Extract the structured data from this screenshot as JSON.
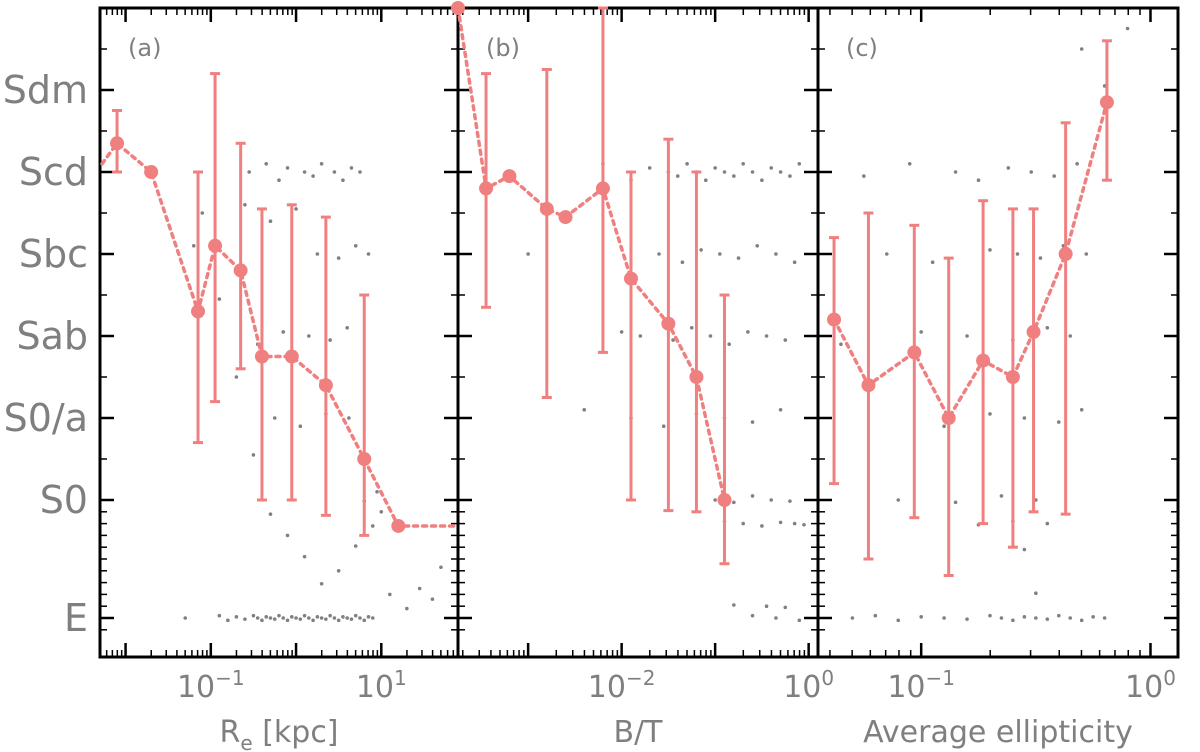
{
  "chart_data": {
    "type": "scatter",
    "y_axis": {
      "ticks": [
        "E",
        "S0",
        "S0/a",
        "Sab",
        "Sbc",
        "Scd",
        "Sdm"
      ],
      "tick_values": [
        -5,
        0,
        1,
        2,
        3,
        4,
        5
      ],
      "ylim": [
        -5.5,
        6.0
      ]
    },
    "marker_color": "#f08080",
    "scatter_color": "#808080",
    "panels": [
      {
        "label": "(a)",
        "xlabel_main": "R",
        "xlabel_sub": "e",
        "xlabel_rest": " [kpc]",
        "xscale": "log",
        "xlim_log10": [
          -2.3,
          1.9
        ],
        "xticks": [
          {
            "base": "10",
            "exp": "−1",
            "log": -1
          },
          {
            "base": "10",
            "exp": "1",
            "log": 1
          }
        ],
        "series": {
          "x_log10": [
            -2.1,
            -1.7,
            -1.15,
            -0.95,
            -0.65,
            -0.4,
            -0.05,
            0.35,
            0.8,
            1.2
          ],
          "y": [
            4.35,
            4.0,
            2.3,
            3.1,
            2.8,
            1.75,
            1.75,
            1.4,
            0.5,
            -1.1
          ],
          "yerr_low": [
            4.0,
            4.0,
            0.7,
            1.2,
            1.6,
            0.0,
            0.0,
            -0.65,
            -1.5,
            -1.1
          ],
          "yerr_high": [
            4.75,
            4.0,
            4.0,
            5.2,
            4.35,
            3.55,
            3.6,
            3.45,
            2.5,
            -1.1
          ]
        },
        "scatter": {
          "x_log10": [
            -1.3,
            -0.9,
            -0.8,
            -0.7,
            -0.6,
            -0.5,
            -0.45,
            -0.4,
            -0.35,
            -0.3,
            -0.25,
            -0.2,
            -0.15,
            -0.1,
            -0.05,
            0.0,
            0.05,
            0.1,
            0.15,
            0.2,
            0.25,
            0.3,
            0.35,
            0.4,
            0.45,
            0.5,
            0.55,
            0.6,
            0.65,
            0.7,
            0.75,
            0.8,
            0.85,
            0.9,
            -0.55,
            -0.35,
            -0.2,
            -0.1,
            0.1,
            0.2,
            0.3,
            0.45,
            0.55,
            0.65,
            0.75,
            -1.1,
            -0.6,
            -0.3,
            0.0,
            0.25,
            0.5,
            0.7,
            0.85,
            -0.45,
            -0.15,
            0.15,
            0.4,
            0.6,
            -0.25,
            0.05,
            0.35,
            0.62,
            0.8,
            0.95,
            1.0,
            0.9,
            0.7,
            0.5,
            0.3,
            0.1,
            -0.1,
            -0.3,
            -0.5,
            -0.7,
            -0.9,
            -1.2,
            1.1,
            1.3,
            1.45,
            1.6,
            1.7
          ],
          "y": [
            -5.0,
            -5.0,
            -5.0,
            -5.0,
            -5.0,
            -5.0,
            -5.0,
            -5.0,
            -5.0,
            -5.0,
            -5.0,
            -5.0,
            -5.0,
            -5.0,
            -5.0,
            -5.0,
            -5.0,
            -5.0,
            -5.0,
            -5.0,
            -5.0,
            -5.0,
            -5.0,
            -5.0,
            -5.0,
            -5.0,
            -5.0,
            -5.0,
            -5.0,
            -5.0,
            -5.0,
            -5.0,
            -5.0,
            -5.0,
            4.0,
            4.0,
            4.0,
            4.0,
            4.0,
            4.0,
            4.0,
            4.0,
            4.0,
            4.0,
            4.0,
            3.5,
            3.5,
            3.5,
            3.5,
            3.0,
            3.0,
            3.0,
            3.0,
            2.0,
            2.0,
            2.0,
            2.0,
            2.0,
            1.0,
            1.0,
            1.0,
            1.0,
            0.0,
            0.0,
            -0.5,
            -1.0,
            -2.0,
            -3.0,
            -3.5,
            -2.5,
            -1.5,
            -0.5,
            0.5,
            1.5,
            2.5,
            3.0,
            -4.0,
            -4.5,
            -3.8,
            -4.2,
            -2.8
          ],
          "y_jitter": [
            0.0,
            0.1,
            -0.1,
            0.05,
            -0.05,
            0.1,
            0.0,
            -0.1,
            0.05,
            0.0,
            -0.05,
            0.1,
            0.0,
            -0.1,
            0.05,
            0.0,
            -0.05,
            0.1,
            0.0,
            -0.1,
            0.05,
            0.0,
            -0.05,
            0.1,
            0.0,
            -0.1,
            0.05,
            0.0,
            -0.05,
            0.1,
            0.0,
            -0.1,
            0.05,
            0.0,
            0.0,
            0.1,
            -0.1,
            0.05,
            0.0,
            -0.05,
            0.1,
            0.0,
            -0.1,
            0.05,
            0.0,
            0.0,
            0.1,
            -0.1,
            0.05,
            0.0,
            -0.05,
            0.1,
            0.0,
            -0.1,
            0.05,
            0.0,
            -0.05,
            0.1,
            0.0,
            -0.1,
            0.05,
            0.0,
            -0.05,
            0.1,
            0.0,
            -0.1,
            0.05,
            0.0,
            -0.05,
            0.1,
            0.0,
            -0.1,
            0.05,
            0.0,
            -0.05,
            0.1,
            0.0,
            -0.1,
            0.05,
            0.0,
            -0.05
          ]
        }
      },
      {
        "label": "(b)",
        "xlabel_main": "B/T",
        "xlabel_sub": "",
        "xlabel_rest": "",
        "xscale": "log",
        "xlim_log10": [
          -3.75,
          0.1
        ],
        "xticks": [
          {
            "base": "10",
            "exp": "−2",
            "log": -2
          },
          {
            "base": "10",
            "exp": "0",
            "log": 0
          }
        ],
        "series": {
          "x_log10": [
            -3.75,
            -3.45,
            -3.2,
            -2.8,
            -2.6,
            -2.2,
            -1.9,
            -1.5,
            -1.2,
            -0.9
          ],
          "y": [
            6.0,
            3.8,
            3.95,
            3.55,
            3.45,
            3.8,
            2.7,
            2.15,
            1.5,
            0.0
          ],
          "yerr_low": [
            6.0,
            2.35,
            3.95,
            1.25,
            3.45,
            1.8,
            0.0,
            -0.45,
            -0.5,
            -2.7
          ],
          "yerr_high": [
            6.0,
            5.2,
            3.95,
            5.25,
            3.45,
            6.0,
            4.0,
            4.4,
            4.0,
            2.5
          ],
          "last_error_x_log10": -0.9
        },
        "scatter": {
          "x_log10": [
            -3.0,
            -2.2,
            -1.9,
            -1.7,
            -1.5,
            -1.4,
            -1.3,
            -1.2,
            -1.1,
            -1.0,
            -0.9,
            -0.8,
            -0.7,
            -0.6,
            -0.5,
            -0.4,
            -0.3,
            -0.2,
            -0.1,
            -1.6,
            -1.35,
            -1.15,
            -0.95,
            -0.75,
            -0.55,
            -0.35,
            -0.15,
            -2.0,
            -1.8,
            -1.45,
            -1.25,
            -1.05,
            -0.85,
            -0.65,
            -0.45,
            -0.25,
            -2.4,
            -1.9,
            -1.55,
            -1.2,
            -0.9,
            -0.6,
            -0.3,
            -1.0,
            -0.8,
            -0.6,
            -0.4,
            -0.2,
            -0.9,
            -0.7,
            -0.5,
            -0.3,
            -0.15,
            -0.05,
            -0.6,
            -0.35,
            -0.1,
            -0.8,
            -0.45,
            -0.25
          ],
          "y": [
            3.0,
            4.0,
            4.0,
            4.0,
            4.0,
            4.0,
            4.0,
            4.0,
            4.0,
            4.0,
            4.0,
            4.0,
            4.0,
            4.0,
            4.0,
            4.0,
            4.0,
            4.0,
            4.0,
            3.0,
            3.0,
            3.0,
            3.0,
            3.0,
            3.0,
            3.0,
            3.0,
            2.0,
            2.0,
            2.0,
            2.0,
            2.0,
            2.0,
            2.0,
            2.0,
            2.0,
            1.0,
            1.0,
            1.0,
            1.0,
            1.0,
            1.0,
            1.0,
            0.0,
            0.0,
            0.0,
            0.0,
            0.0,
            -1.0,
            -1.0,
            -1.0,
            -1.0,
            -1.0,
            -1.0,
            -5.0,
            -5.0,
            -5.0,
            -4.5,
            -4.5,
            -4.5
          ],
          "y_jitter": [
            0.0,
            0.1,
            -0.1,
            0.05,
            0.0,
            -0.05,
            0.1,
            0.0,
            -0.1,
            0.05,
            0.0,
            -0.05,
            0.1,
            0.0,
            -0.1,
            0.05,
            0.0,
            -0.05,
            0.1,
            0.0,
            -0.1,
            0.05,
            0.0,
            -0.05,
            0.1,
            0.0,
            -0.1,
            0.05,
            0.0,
            -0.05,
            0.1,
            0.0,
            -0.1,
            0.05,
            0.0,
            -0.05,
            0.1,
            0.0,
            -0.1,
            0.05,
            0.0,
            -0.05,
            0.1,
            0.0,
            -0.1,
            0.05,
            0.0,
            -0.05,
            0.1,
            0.0,
            -0.1,
            0.05,
            0.0,
            -0.05,
            0.1,
            0.0,
            -0.1,
            0.05,
            0.0,
            -0.05
          ]
        }
      },
      {
        "label": "(c)",
        "xlabel_main": "Average ellipticity",
        "xlabel_sub": "",
        "xlabel_rest": "",
        "xscale": "log",
        "xlim_log10": [
          -1.45,
          0.12
        ],
        "xticks": [
          {
            "base": "10",
            "exp": "−1",
            "log": -1
          },
          {
            "base": "10",
            "exp": "0",
            "log": 0
          }
        ],
        "series": {
          "x_log10": [
            -1.38,
            -1.23,
            -1.03,
            -0.88,
            -0.73,
            -0.6,
            -0.51,
            -0.37,
            -0.19
          ],
          "y": [
            2.2,
            1.4,
            1.8,
            1.0,
            1.7,
            1.5,
            2.05,
            3.0,
            4.85
          ],
          "yerr_low": [
            0.2,
            -2.5,
            -0.75,
            -3.2,
            -1.0,
            -2.0,
            -0.5,
            -0.6,
            3.9
          ],
          "yerr_high": [
            3.2,
            3.5,
            3.35,
            2.95,
            3.65,
            3.55,
            3.55,
            4.6,
            5.6
          ]
        },
        "scatter": {
          "x_log10": [
            -1.3,
            -1.2,
            -1.1,
            -1.0,
            -0.9,
            -0.8,
            -0.7,
            -0.65,
            -0.6,
            -0.55,
            -0.5,
            -0.45,
            -0.4,
            -0.35,
            -0.3,
            -0.25,
            -0.2,
            -1.25,
            -1.05,
            -0.85,
            -0.75,
            -0.62,
            -0.52,
            -0.42,
            -0.32,
            -1.15,
            -0.95,
            -0.7,
            -0.58,
            -0.48,
            -0.38,
            -0.28,
            -1.35,
            -1.0,
            -0.8,
            -0.6,
            -0.45,
            -0.35,
            -0.9,
            -0.7,
            -0.55,
            -0.4,
            -0.3,
            -1.1,
            -0.85,
            -0.65,
            -0.5,
            -0.75,
            -0.6,
            -0.45,
            -0.55,
            -0.5,
            -0.3,
            -0.2,
            -0.1
          ],
          "y": [
            -5.0,
            -5.0,
            -5.0,
            -5.0,
            -5.0,
            -5.0,
            -5.0,
            -5.0,
            -5.0,
            -5.0,
            -5.0,
            -5.0,
            -5.0,
            -5.0,
            -5.0,
            -5.0,
            -5.0,
            4.0,
            4.0,
            4.0,
            4.0,
            4.0,
            4.0,
            4.0,
            4.0,
            3.0,
            3.0,
            3.0,
            3.0,
            3.0,
            3.0,
            3.0,
            2.0,
            2.0,
            2.0,
            2.0,
            2.0,
            2.0,
            1.0,
            1.0,
            1.0,
            1.0,
            1.0,
            0.0,
            0.0,
            0.0,
            0.0,
            -1.0,
            -1.0,
            -1.0,
            -2.0,
            -4.0,
            5.5,
            5.0,
            5.8
          ],
          "y_jitter": [
            0.0,
            0.1,
            -0.1,
            0.05,
            0.0,
            -0.05,
            0.1,
            0.0,
            -0.1,
            0.05,
            0.0,
            -0.05,
            0.1,
            0.0,
            -0.1,
            0.05,
            0.0,
            -0.05,
            0.1,
            0.0,
            -0.1,
            0.05,
            0.0,
            -0.05,
            0.1,
            0.0,
            -0.1,
            0.05,
            0.0,
            -0.05,
            0.1,
            0.0,
            -0.1,
            0.05,
            0.0,
            -0.05,
            0.1,
            0.0,
            -0.1,
            0.05,
            0.0,
            -0.05,
            0.1,
            0.0,
            -0.1,
            0.05,
            0.0,
            -0.05,
            0.1,
            0.0,
            -0.1,
            0.05,
            0.0,
            0.05,
            -0.05
          ]
        }
      }
    ]
  }
}
